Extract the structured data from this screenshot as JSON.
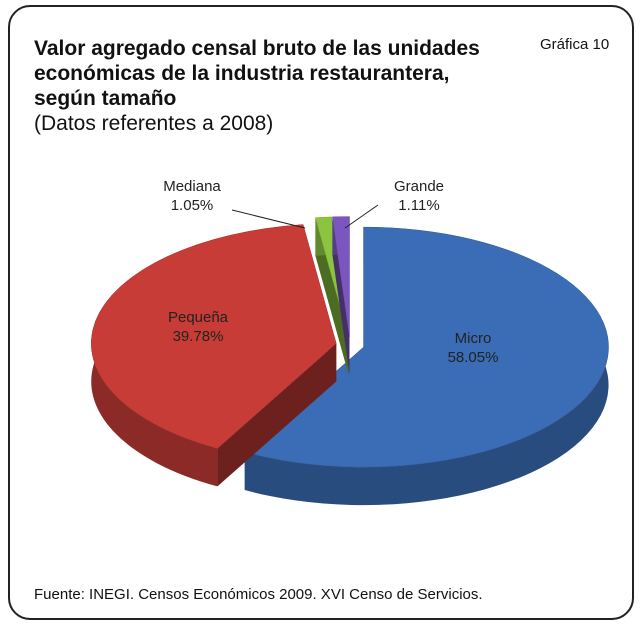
{
  "chart_data": {
    "type": "pie",
    "title": "Valor agregado censal bruto de  las unidades económicas de la industria restaurantera, según tamaño",
    "subtitle": "(Datos referentes a 2008)",
    "annotation": "Gráfica 10",
    "source": "Fuente: INEGI. Censos Económicos 2009. XVI Censo de Servicios.",
    "categories": [
      "Micro",
      "Pequeña",
      "Mediana",
      "Grande"
    ],
    "values": [
      58.05,
      39.78,
      1.05,
      1.11
    ],
    "value_labels": [
      "58.05%",
      "39.78%",
      "1.05%",
      "1.11%"
    ],
    "colors": [
      "#3a6db5",
      "#c73c36",
      "#8cc43f",
      "#7b56bf"
    ]
  }
}
